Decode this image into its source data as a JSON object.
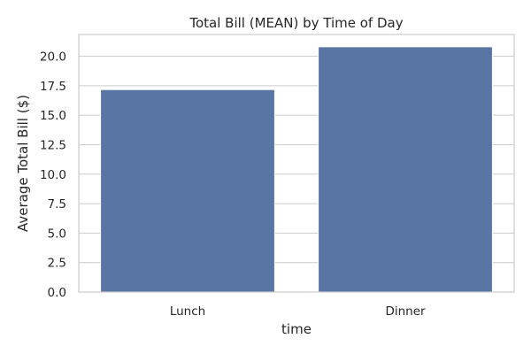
{
  "chart_data": {
    "type": "bar",
    "title": "Total Bill (MEAN) by Time of Day",
    "xlabel": "time",
    "ylabel": "Average Total Bill ($)",
    "categories": [
      "Lunch",
      "Dinner"
    ],
    "values": [
      17.17,
      20.8
    ],
    "ylim": [
      0,
      21.84
    ],
    "yticks": [
      "0.0",
      "2.5",
      "5.0",
      "7.5",
      "10.0",
      "12.5",
      "15.0",
      "17.5",
      "20.0"
    ],
    "grid": true,
    "bar_color": "#5875a4"
  }
}
